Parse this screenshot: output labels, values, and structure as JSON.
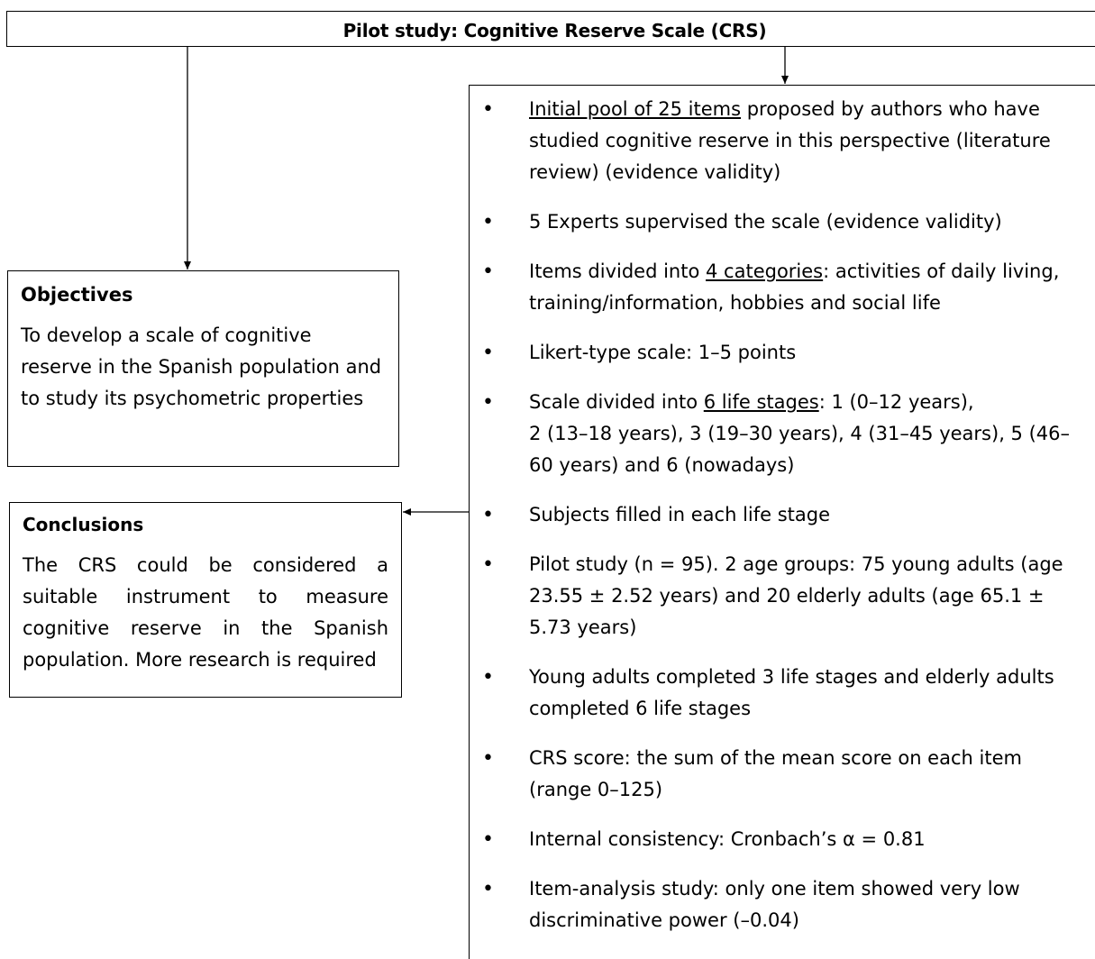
{
  "title": "Pilot study: Cognitive Reserve Scale (CRS)",
  "objectives": {
    "heading": "Objectives",
    "text": "To develop a scale of cognitive reserve in the Spanish population and to study its psychometric properties"
  },
  "conclusions": {
    "heading": "Conclusions",
    "text": "The CRS could be considered a suitable instrument to measure cognitive reserve in the Spanish population. More research is required"
  },
  "details": {
    "bullet_glyph": "•",
    "items": [
      {
        "u": "Initial pool of 25 items",
        "rest": " proposed by authors who have studied cognitive reserve in this perspective (literature review) (evidence validity)"
      },
      {
        "pre": "5 Experts supervised the scale (evidence validity)"
      },
      {
        "pre": "Items divided into ",
        "u": "4 categories",
        "rest": ": activities of daily living, training/information, hobbies and social life"
      },
      {
        "pre": "Likert-type scale: 1–5 points"
      },
      {
        "pre": "Scale divided into ",
        "u": "6 life stages",
        "rest": ": 1 (0–12 years),",
        "rest2": "2 (13–18 years), 3 (19–30 years), 4 (31–45 years), 5 (46–60 years) and 6 (nowadays)"
      },
      {
        "pre": "Subjects filled in each life stage"
      },
      {
        "pre": "Pilot study (n = 95). 2 age groups: 75 young adults (age 23.55 ± 2.52 years) and 20 elderly adults (age 65.1 ± 5.73 years)"
      },
      {
        "pre": "Young adults completed 3 life stages and elderly adults completed 6 life stages"
      },
      {
        "pre": "CRS score: the sum of the mean score on each item (range 0–125)"
      },
      {
        "pre": "Internal consistency: Cronbach’s  α = 0.81"
      },
      {
        "pre": "Item-analysis study: only one item showed very low discriminative power (–0.04)"
      }
    ]
  }
}
